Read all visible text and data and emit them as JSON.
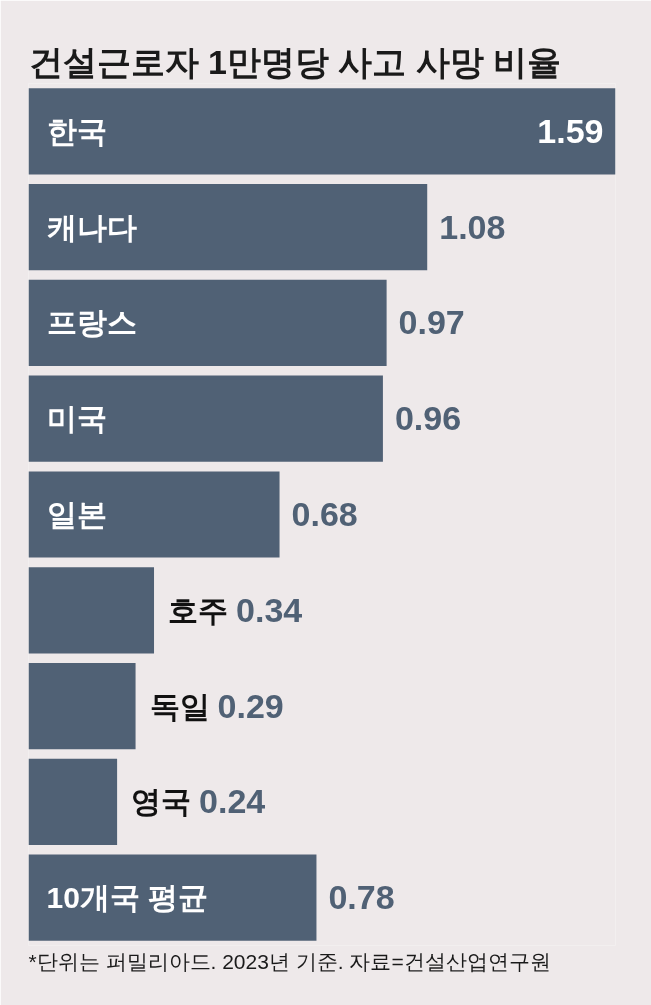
{
  "chart_data": {
    "type": "bar",
    "orientation": "horizontal",
    "title": "건설근로자 1만명당 사고 사망 비율",
    "categories": [
      "한국",
      "캐나다",
      "프랑스",
      "미국",
      "일본",
      "호주",
      "독일",
      "영국",
      "10개국 평균"
    ],
    "values": [
      1.59,
      1.08,
      0.97,
      0.96,
      0.68,
      0.34,
      0.29,
      0.24,
      0.78
    ],
    "color": "#506175",
    "data_labels": true,
    "tick_labels": "y",
    "annotations": [
      "*단위는 퍼밀리아드. 2023년 기준. 자료=건설산업연구원"
    ]
  }
}
